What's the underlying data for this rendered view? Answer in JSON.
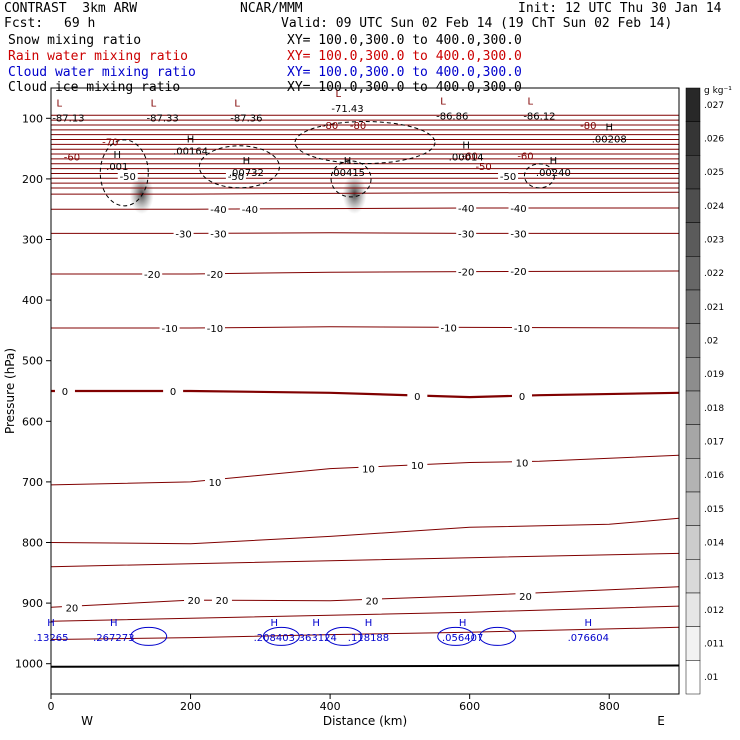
{
  "header": {
    "model": "CONTRAST  3km ARW",
    "center": "NCAR/MMM",
    "init": "Init: 12 UTC Thu 30 Jan 14",
    "fcst_label": "Fcst:",
    "fcst_value": "69 h",
    "valid": "Valid: 09 UTC Sun 02 Feb 14 (19 ChT Sun 02 Feb 14)"
  },
  "fields": [
    {
      "name": "Snow mixing ratio",
      "color": "#000000",
      "xy": "XY= 100.0,300.0 to 400.0,300.0"
    },
    {
      "name": "Rain water mixing ratio",
      "color": "#cc0000",
      "xy": "XY= 100.0,300.0 to 400.0,300.0"
    },
    {
      "name": "Cloud water mixing ratio",
      "color": "#0000cc",
      "xy": "XY= 100.0,300.0 to 400.0,300.0"
    },
    {
      "name": "Cloud ice mixing ratio",
      "color": "#000000",
      "xy": "XY= 100.0,300.0 to 400.0,300.0"
    }
  ],
  "chart_data": {
    "type": "contour",
    "xlabel": "Distance (km)",
    "ylabel": "Pressure (hPa)",
    "xlim": [
      0,
      900
    ],
    "ylim": [
      1050,
      50
    ],
    "x_ticks": [
      0,
      200,
      400,
      600,
      800
    ],
    "y_ticks": [
      100,
      200,
      300,
      400,
      500,
      600,
      700,
      800,
      900,
      1000
    ],
    "west_label": "W",
    "east_label": "E",
    "colorbar": {
      "unit": "g kg⁻¹",
      "ticks": [
        ".027",
        ".026",
        ".025",
        ".024",
        ".023",
        ".022",
        ".021",
        ".02",
        ".019",
        ".018",
        ".017",
        ".016",
        ".015",
        ".014",
        ".013",
        ".012",
        ".011",
        ".01"
      ]
    },
    "temperature_contours": [
      {
        "value": -50,
        "color": "#800000",
        "points": [
          [
            0,
            225
          ],
          [
            200,
            225
          ],
          [
            400,
            224
          ],
          [
            600,
            223
          ],
          [
            900,
            222
          ]
        ],
        "labels": [
          [
            110,
            195,
            "-50"
          ],
          [
            265,
            195,
            "-50"
          ],
          [
            655,
            195,
            "-50"
          ]
        ]
      },
      {
        "value": -40,
        "color": "#800000",
        "points": [
          [
            0,
            250
          ],
          [
            200,
            250
          ],
          [
            400,
            249
          ],
          [
            600,
            248
          ],
          [
            900,
            248
          ]
        ],
        "labels": [
          [
            240,
            250,
            "-40"
          ],
          [
            285,
            250,
            "-40"
          ],
          [
            595,
            248,
            "-40"
          ],
          [
            670,
            248,
            "-40"
          ]
        ]
      },
      {
        "value": -30,
        "color": "#800000",
        "points": [
          [
            0,
            290
          ],
          [
            200,
            290
          ],
          [
            400,
            289
          ],
          [
            600,
            290
          ],
          [
            900,
            290
          ]
        ],
        "labels": [
          [
            190,
            290,
            "-30"
          ],
          [
            240,
            290,
            "-30"
          ],
          [
            595,
            290,
            "-30"
          ],
          [
            670,
            290,
            "-30"
          ]
        ]
      },
      {
        "value": -20,
        "color": "#800000",
        "points": [
          [
            0,
            357
          ],
          [
            200,
            357
          ],
          [
            400,
            354
          ],
          [
            600,
            353
          ],
          [
            900,
            352
          ]
        ],
        "labels": [
          [
            145,
            357,
            "-20"
          ],
          [
            235,
            357,
            "-20"
          ],
          [
            595,
            353,
            "-20"
          ],
          [
            670,
            352,
            "-20"
          ]
        ]
      },
      {
        "value": -10,
        "color": "#800000",
        "points": [
          [
            0,
            446
          ],
          [
            200,
            446
          ],
          [
            400,
            444
          ],
          [
            600,
            445
          ],
          [
            900,
            446
          ]
        ],
        "labels": [
          [
            170,
            446,
            "-10"
          ],
          [
            235,
            446,
            "-10"
          ],
          [
            570,
            445,
            "-10"
          ],
          [
            675,
            446,
            "-10"
          ]
        ]
      },
      {
        "value": 0,
        "color": "#800000",
        "points": [
          [
            0,
            550
          ],
          [
            200,
            550
          ],
          [
            400,
            553
          ],
          [
            600,
            560
          ],
          [
            700,
            557
          ],
          [
            900,
            553
          ]
        ],
        "labels": [
          [
            20,
            550,
            "0"
          ],
          [
            175,
            550,
            "0"
          ],
          [
            525,
            558,
            "0"
          ],
          [
            675,
            558,
            "0"
          ]
        ]
      },
      {
        "value": 10,
        "color": "#800000",
        "points": [
          [
            0,
            705
          ],
          [
            200,
            700
          ],
          [
            400,
            678
          ],
          [
            600,
            668
          ],
          [
            700,
            666
          ],
          [
            900,
            656
          ]
        ],
        "labels": [
          [
            235,
            700,
            "10"
          ],
          [
            455,
            678,
            "10"
          ],
          [
            525,
            672,
            "10"
          ],
          [
            675,
            668,
            "10"
          ]
        ]
      },
      {
        "value": 20,
        "color": "#800000",
        "points": [
          [
            0,
            907
          ],
          [
            200,
            895
          ],
          [
            400,
            896
          ],
          [
            600,
            888
          ],
          [
            900,
            873
          ]
        ],
        "labels": [
          [
            30,
            907,
            "20"
          ],
          [
            205,
            895,
            "20"
          ],
          [
            245,
            895,
            "20"
          ],
          [
            460,
            896,
            "20"
          ],
          [
            680,
            888,
            "20"
          ]
        ]
      }
    ],
    "ice_maxima": [
      {
        "x": 200,
        "p": 160,
        "label": ".00164"
      },
      {
        "x": 280,
        "p": 195,
        "label": ".00732"
      },
      {
        "x": 425,
        "p": 195,
        "label": ".00415"
      },
      {
        "x": 595,
        "p": 170,
        "label": ".00014"
      },
      {
        "x": 720,
        "p": 195,
        "label": ".00240"
      },
      {
        "x": 800,
        "p": 140,
        "label": ".00208"
      },
      {
        "x": 95,
        "p": 185,
        "label": ".001"
      }
    ],
    "temperature_minima": [
      {
        "x": 25,
        "p": 100,
        "label": "-87.13"
      },
      {
        "x": 160,
        "p": 100,
        "label": "-87.33"
      },
      {
        "x": 280,
        "p": 100,
        "label": "-87.36"
      },
      {
        "x": 425,
        "p": 85,
        "label": "-71.43"
      },
      {
        "x": 575,
        "p": 97,
        "label": "-86.86"
      },
      {
        "x": 700,
        "p": 97,
        "label": "-86.12"
      }
    ],
    "cloud_water_maxima": [
      {
        "x": 0,
        "p": 958,
        "label": ".13265"
      },
      {
        "x": 90,
        "p": 958,
        "label": ".267273"
      },
      {
        "x": 320,
        "p": 958,
        "label": ".208403"
      },
      {
        "x": 380,
        "p": 958,
        "label": ".363124"
      },
      {
        "x": 455,
        "p": 958,
        "label": ".118188"
      },
      {
        "x": 590,
        "p": 958,
        "label": ".056407"
      },
      {
        "x": 770,
        "p": 958,
        "label": ".076604"
      }
    ],
    "snow_maxima": [
      {
        "x": 130,
        "p": 225,
        "label": "0.027"
      },
      {
        "x": 435,
        "p": 225,
        "label": "0.015"
      }
    ]
  }
}
